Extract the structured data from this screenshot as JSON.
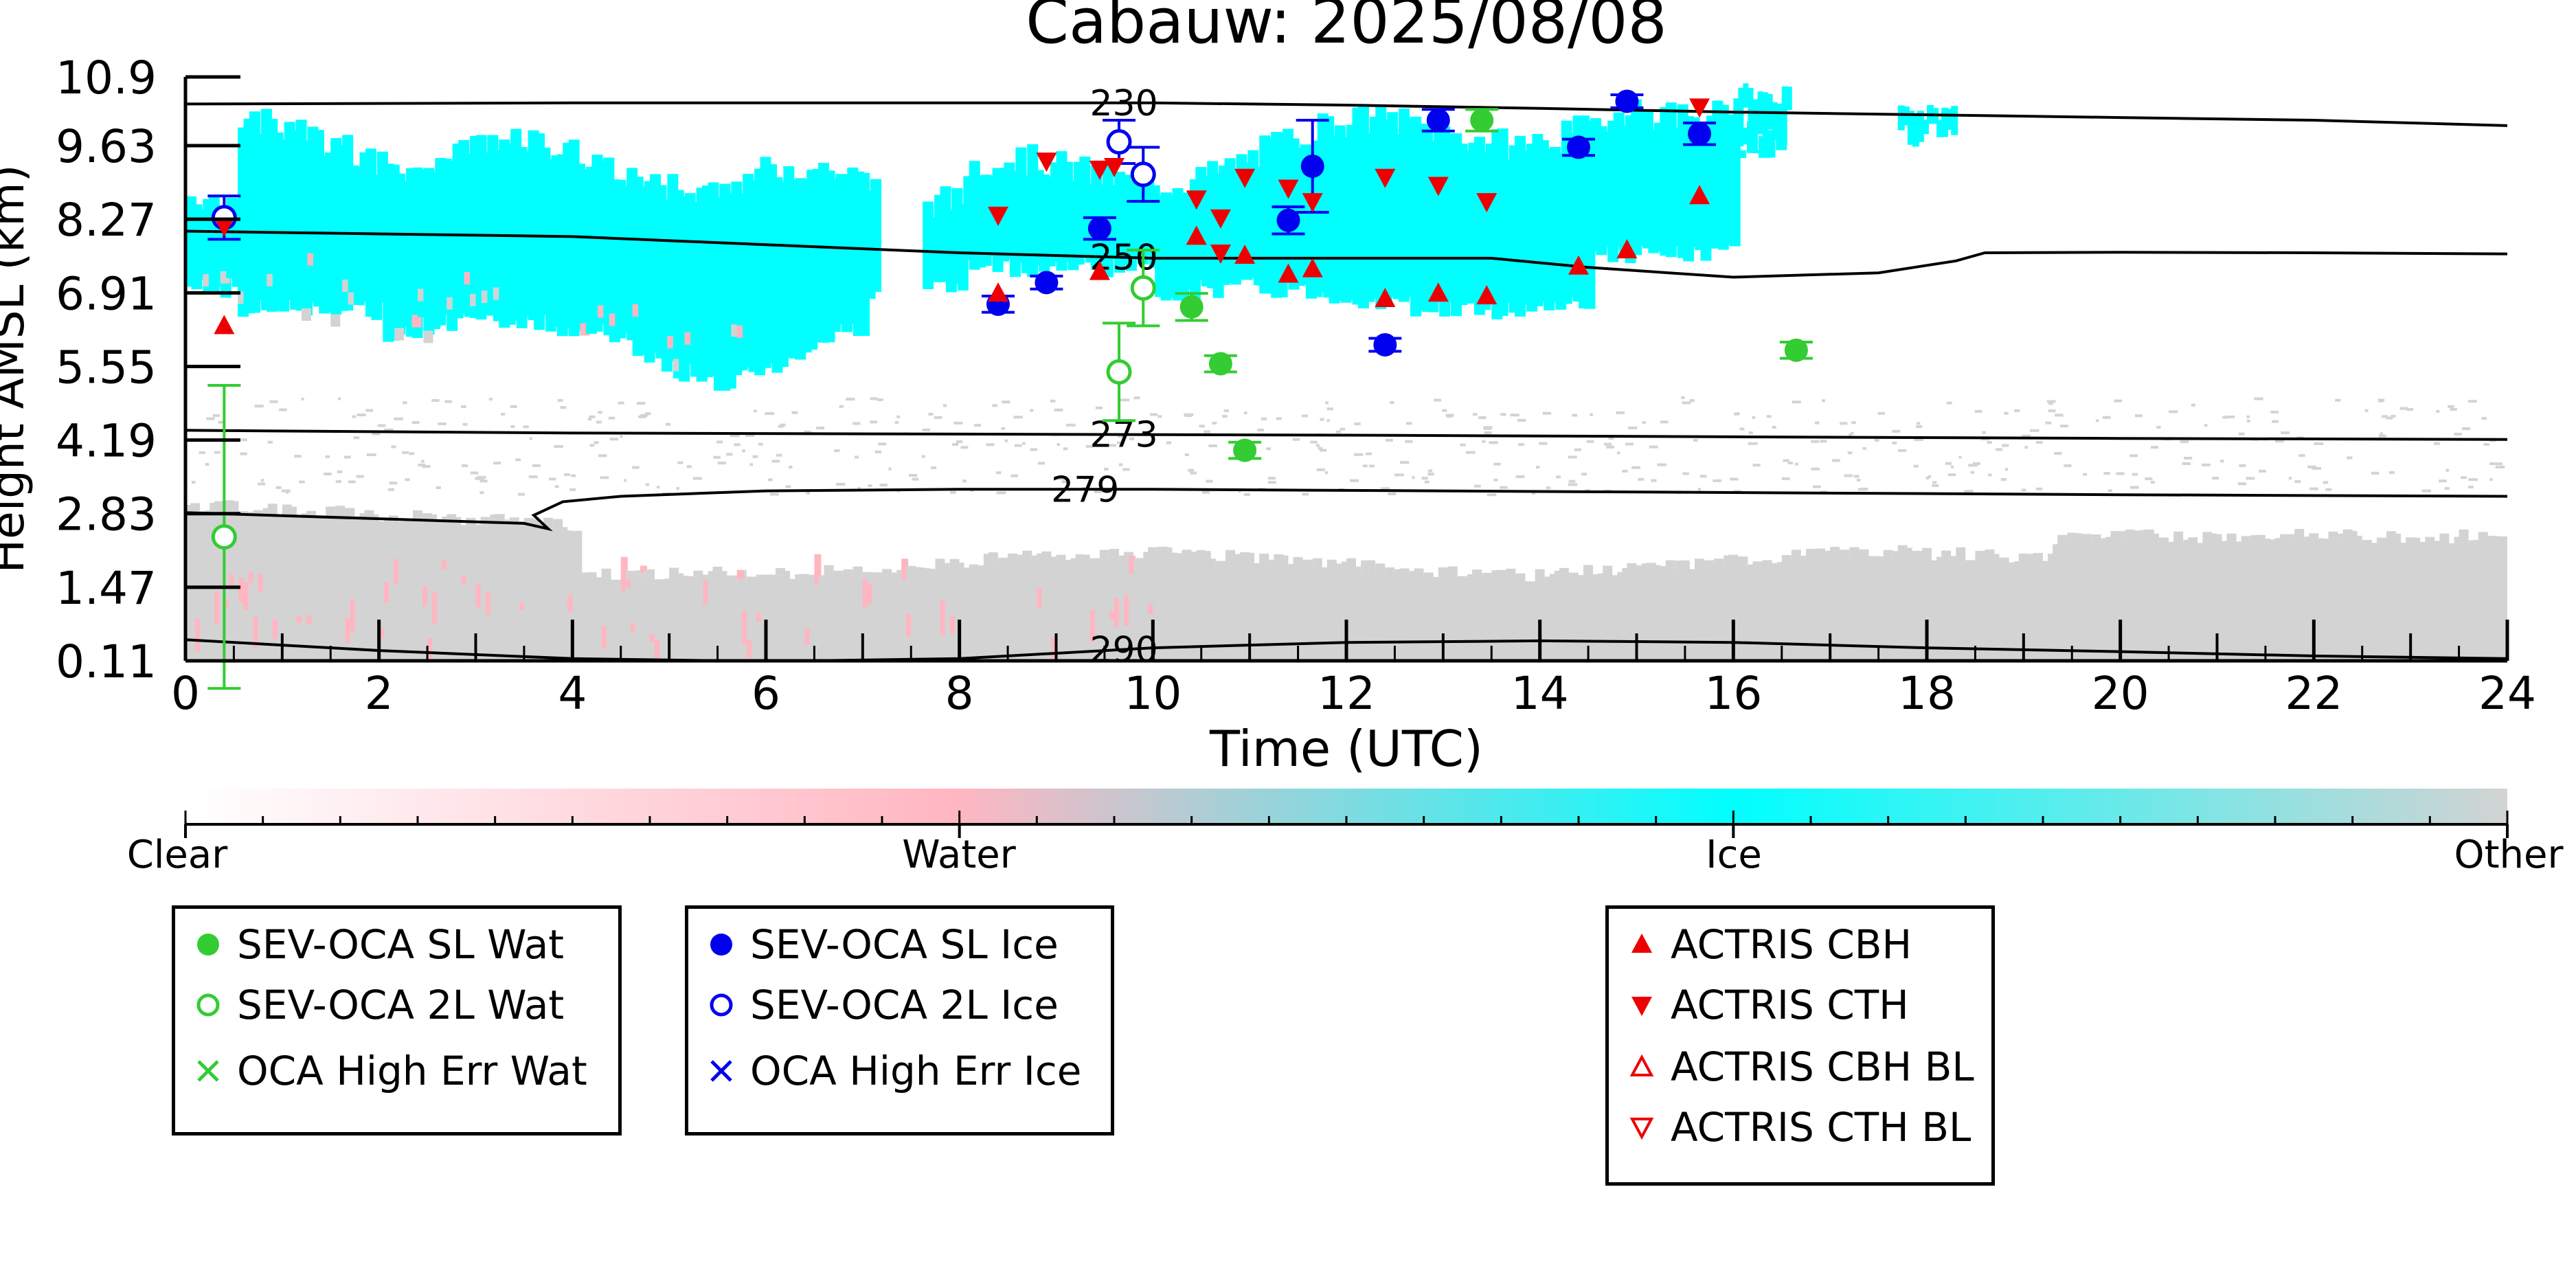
{
  "chart_data": {
    "type": "scatter",
    "title": "Cabauw: 2025/08/08",
    "xlabel": "Time (UTC)",
    "ylabel": "Height AMSL (km)",
    "xlim": [
      0,
      24
    ],
    "ylim": [
      0.11,
      10.9
    ],
    "xticks": [
      "0",
      "2",
      "4",
      "6",
      "8",
      "10",
      "12",
      "14",
      "16",
      "18",
      "20",
      "22",
      "24"
    ],
    "yticks": [
      "0.11",
      "1.47",
      "2.83",
      "4.19",
      "5.55",
      "6.91",
      "8.27",
      "9.63",
      "10.9"
    ],
    "colorbar": {
      "labels": [
        "Clear",
        "Water",
        "Ice",
        "Other"
      ],
      "colors": [
        "#ffffff",
        "#ffb6c1",
        "#00ffff",
        "#d3d3d3"
      ]
    },
    "contours": [
      {
        "label": "230",
        "label_x": 9.7,
        "x": [
          0,
          4,
          8,
          10,
          12,
          14,
          16,
          18,
          20,
          22,
          24
        ],
        "y": [
          10.4,
          10.42,
          10.42,
          10.42,
          10.38,
          10.32,
          10.25,
          10.2,
          10.15,
          10.1,
          10.0
        ]
      },
      {
        "label": "250",
        "label_x": 9.7,
        "x": [
          0,
          2,
          4,
          6,
          8,
          10,
          12,
          13.5,
          14.5,
          16,
          17.5,
          18.3,
          18.6,
          20,
          22,
          24
        ],
        "y": [
          8.05,
          8.0,
          7.95,
          7.8,
          7.65,
          7.55,
          7.55,
          7.55,
          7.38,
          7.2,
          7.28,
          7.5,
          7.65,
          7.66,
          7.65,
          7.63
        ]
      },
      {
        "label": "273",
        "label_x": 9.7,
        "x": [
          0,
          4,
          8,
          12,
          16,
          20,
          24
        ],
        "y": [
          4.37,
          4.32,
          4.3,
          4.28,
          4.25,
          4.22,
          4.2
        ]
      },
      {
        "label": "279",
        "label_x": 9.3,
        "x": [
          0,
          3.5,
          3.75,
          3.6,
          3.9,
          4.5,
          6,
          8,
          10,
          12,
          16,
          20,
          24
        ],
        "y": [
          2.85,
          2.65,
          2.55,
          2.8,
          3.05,
          3.15,
          3.25,
          3.28,
          3.28,
          3.26,
          3.22,
          3.18,
          3.15
        ]
      },
      {
        "label": "290",
        "label_x": 9.7,
        "x": [
          0,
          2,
          4,
          6,
          8,
          10,
          12,
          14,
          16,
          18,
          20,
          22,
          24
        ],
        "y": [
          0.5,
          0.3,
          0.15,
          0.1,
          0.15,
          0.35,
          0.45,
          0.48,
          0.45,
          0.35,
          0.28,
          0.2,
          0.15
        ]
      }
    ],
    "series": [
      {
        "name": "SEV-OCA SL Wat",
        "marker": "filled-circle",
        "color": "#33cc33",
        "points": [
          {
            "x": 10.4,
            "y": 6.65,
            "err": 0.25
          },
          {
            "x": 10.7,
            "y": 5.6,
            "err": 0.15
          },
          {
            "x": 10.95,
            "y": 4.0,
            "err": 0.15
          },
          {
            "x": 13.4,
            "y": 10.1,
            "err": 0.2
          },
          {
            "x": 16.65,
            "y": 5.85,
            "err": 0.15
          }
        ]
      },
      {
        "name": "SEV-OCA 2L Wat",
        "marker": "open-circle",
        "color": "#33cc33",
        "points": [
          {
            "x": 0.4,
            "y": 2.4,
            "err": 2.8
          },
          {
            "x": 9.65,
            "y": 5.45,
            "err": 0.9
          },
          {
            "x": 9.9,
            "y": 7.0,
            "err": 0.7
          }
        ]
      },
      {
        "name": "SEV-OCA SL Ice",
        "marker": "filled-circle",
        "color": "#0000ee",
        "points": [
          {
            "x": 8.4,
            "y": 6.7,
            "err": 0.15
          },
          {
            "x": 8.9,
            "y": 7.1,
            "err": 0.12
          },
          {
            "x": 9.45,
            "y": 8.1,
            "err": 0.2
          },
          {
            "x": 11.4,
            "y": 8.25,
            "err": 0.25
          },
          {
            "x": 11.65,
            "y": 9.25,
            "err": 0.85
          },
          {
            "x": 12.4,
            "y": 5.95,
            "err": 0.12
          },
          {
            "x": 12.95,
            "y": 10.1,
            "err": 0.2
          },
          {
            "x": 14.4,
            "y": 9.6,
            "err": 0.15
          },
          {
            "x": 14.9,
            "y": 10.45,
            "err": 0.12
          },
          {
            "x": 15.65,
            "y": 9.85,
            "err": 0.2
          }
        ]
      },
      {
        "name": "SEV-OCA 2L Ice",
        "marker": "open-circle",
        "color": "#0000ee",
        "points": [
          {
            "x": 0.4,
            "y": 8.3,
            "err": 0.4
          },
          {
            "x": 9.65,
            "y": 9.7,
            "err": 0.4
          },
          {
            "x": 9.9,
            "y": 9.1,
            "err": 0.5
          }
        ]
      },
      {
        "name": "OCA High Err Wat",
        "marker": "cross",
        "color": "#33cc33",
        "points": []
      },
      {
        "name": "OCA High Err Ice",
        "marker": "cross",
        "color": "#0000ee",
        "points": []
      },
      {
        "name": "ACTRIS CBH",
        "marker": "triangle-up",
        "color": "#ee0000",
        "points": [
          {
            "x": 0.4,
            "y": 6.3
          },
          {
            "x": 8.4,
            "y": 6.9
          },
          {
            "x": 9.45,
            "y": 7.3
          },
          {
            "x": 10.45,
            "y": 7.95
          },
          {
            "x": 10.95,
            "y": 7.6
          },
          {
            "x": 11.4,
            "y": 7.25
          },
          {
            "x": 11.65,
            "y": 7.35
          },
          {
            "x": 12.4,
            "y": 6.8
          },
          {
            "x": 12.95,
            "y": 6.9
          },
          {
            "x": 13.45,
            "y": 6.85
          },
          {
            "x": 14.4,
            "y": 7.4
          },
          {
            "x": 14.9,
            "y": 7.7
          },
          {
            "x": 15.65,
            "y": 8.7
          }
        ]
      },
      {
        "name": "ACTRIS CTH",
        "marker": "triangle-down",
        "color": "#ee0000",
        "points": [
          {
            "x": 0.4,
            "y": 8.15
          },
          {
            "x": 8.4,
            "y": 8.35
          },
          {
            "x": 8.9,
            "y": 9.35
          },
          {
            "x": 9.45,
            "y": 9.2
          },
          {
            "x": 10.45,
            "y": 8.65
          },
          {
            "x": 10.7,
            "y": 8.3
          },
          {
            "x": 10.7,
            "y": 7.65
          },
          {
            "x": 10.95,
            "y": 9.05
          },
          {
            "x": 11.4,
            "y": 8.85
          },
          {
            "x": 11.65,
            "y": 8.6
          },
          {
            "x": 12.4,
            "y": 9.05
          },
          {
            "x": 12.95,
            "y": 8.9
          },
          {
            "x": 13.45,
            "y": 8.6
          },
          {
            "x": 15.65,
            "y": 10.35
          },
          {
            "x": 9.6,
            "y": 9.25
          }
        ]
      },
      {
        "name": "ACTRIS CBH BL",
        "marker": "open-triangle-up",
        "color": "#ee0000",
        "points": []
      },
      {
        "name": "ACTRIS CTH BL",
        "marker": "open-triangle-down",
        "color": "#ee0000",
        "points": []
      }
    ]
  }
}
